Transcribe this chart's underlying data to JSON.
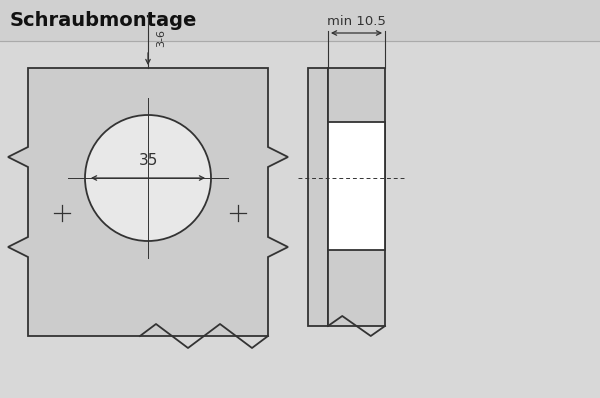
{
  "title": "Schraubmontage",
  "title_fontsize": 14,
  "bg_color": "#d8d8d8",
  "header_color": "#d0d0d0",
  "plate_color": "#cccccc",
  "line_color": "#333333",
  "dim_36_text": "3-6",
  "dim_35_text": "35",
  "dim_min_text": "min 10.5",
  "circle_fill": "#e8e8e8",
  "side_fill": "#cccccc",
  "cup_fill": "#ffffff",
  "lw": 1.3
}
